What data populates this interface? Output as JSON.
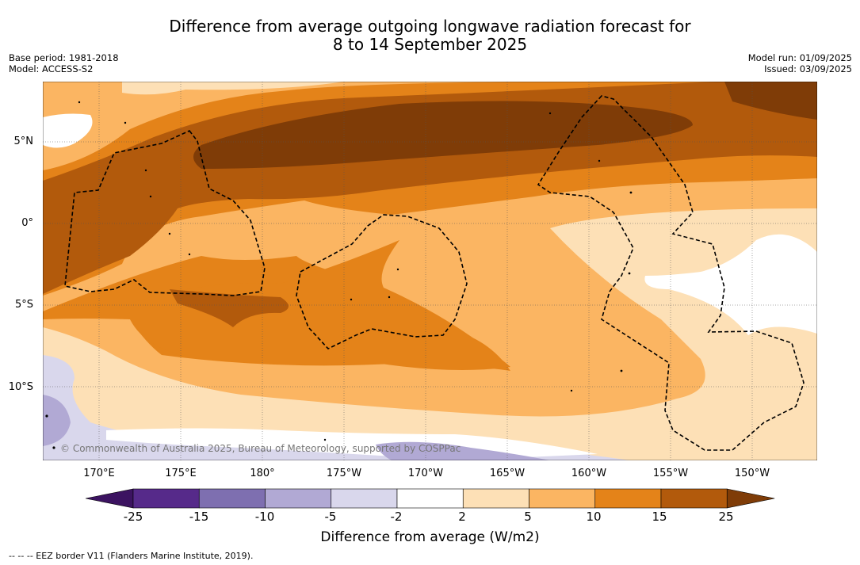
{
  "title_line1": "Difference from average outgoing longwave radiation forecast for",
  "title_line2": "8 to 14 September 2025",
  "base_period": "Base period: 1981-2018",
  "model": "Model: ACCESS-S2",
  "model_run": "Model run: 01/09/2025",
  "issued": "Issued: 03/09/2025",
  "lat_labels": [
    "5°N",
    "0°",
    "5°S",
    "10°S"
  ],
  "lon_labels": [
    "170°E",
    "175°E",
    "180°",
    "175°W",
    "170°W",
    "165°W",
    "160°W",
    "155°W",
    "150°W"
  ],
  "credit": "© Commonwealth of Australia 2025, Bureau of Meteorology, supported by COSPPac",
  "colorbar": {
    "ticks": [
      "-25",
      "-15",
      "-10",
      "-5",
      "-2",
      "2",
      "5",
      "10",
      "15",
      "25"
    ],
    "colors": [
      "#3c1361",
      "#562a8a",
      "#7e6fb0",
      "#b1a9d4",
      "#d9d7ec",
      "#ffffff",
      "#fde0b6",
      "#fbb562",
      "#e48319",
      "#b25a0c",
      "#7f3c07"
    ],
    "label": "Difference from average (W/m2)"
  },
  "footnote": "--  --  -- EEZ border V11 (Flanders Marine Institute, 2019)."
}
